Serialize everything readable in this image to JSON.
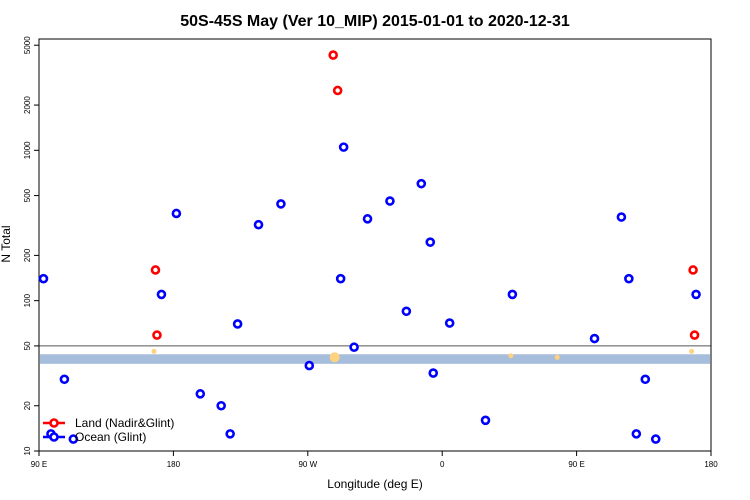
{
  "chart_data": {
    "type": "scatter",
    "title": "50S-45S May (Ver 10_MIP)   2015-01-01 to 2020-12-31",
    "xlabel": "Longitude (deg E)",
    "ylabel": "N Total",
    "x_ticks": [
      {
        "value": 90,
        "label": "90 E"
      },
      {
        "value": 180,
        "label": "180"
      },
      {
        "value": 270,
        "label": "90 W"
      },
      {
        "value": 360,
        "label": "0"
      },
      {
        "value": 450,
        "label": "90 E"
      },
      {
        "value": 540,
        "label": "180"
      }
    ],
    "y_ticks": [
      {
        "value": 10,
        "label": "10"
      },
      {
        "value": 20,
        "label": "20"
      },
      {
        "value": 50,
        "label": "50"
      },
      {
        "value": 100,
        "label": "100"
      },
      {
        "value": 200,
        "label": "200"
      },
      {
        "value": 500,
        "label": "500"
      },
      {
        "value": 1000,
        "label": "1000"
      },
      {
        "value": 2000,
        "label": "2000"
      },
      {
        "value": 5000,
        "label": "5000"
      }
    ],
    "xlim": [
      90,
      540
    ],
    "ylim": [
      10,
      5500
    ],
    "y_scale": "log",
    "threshold_line": 50,
    "band": {
      "ymin": 38,
      "ymax": 44,
      "color": "#a6bddb"
    },
    "series": [
      {
        "name": "Land (Nadir&Glint)",
        "color": "#ff0000",
        "points": [
          [
            168,
            160
          ],
          [
            169,
            59
          ],
          [
            287,
            4300
          ],
          [
            290,
            2500
          ],
          [
            528,
            160
          ],
          [
            529,
            59
          ]
        ]
      },
      {
        "name": "Ocean (Glint)",
        "color": "#0000ff",
        "points": [
          [
            93,
            140
          ],
          [
            98,
            13
          ],
          [
            107,
            30
          ],
          [
            113,
            12
          ],
          [
            172,
            110
          ],
          [
            182,
            380
          ],
          [
            198,
            24
          ],
          [
            212,
            20
          ],
          [
            218,
            13
          ],
          [
            223,
            70
          ],
          [
            237,
            320
          ],
          [
            252,
            440
          ],
          [
            271,
            37
          ],
          [
            292,
            140
          ],
          [
            294,
            1050
          ],
          [
            301,
            49
          ],
          [
            310,
            350
          ],
          [
            325,
            460
          ],
          [
            336,
            85
          ],
          [
            346,
            600
          ],
          [
            352,
            245
          ],
          [
            354,
            33
          ],
          [
            365,
            71
          ],
          [
            389,
            16
          ],
          [
            407,
            110
          ],
          [
            462,
            56
          ],
          [
            480,
            360
          ],
          [
            485,
            140
          ],
          [
            490,
            13
          ],
          [
            496,
            30
          ],
          [
            503,
            12
          ],
          [
            530,
            110
          ]
        ]
      }
    ],
    "small_markers": {
      "color": "#ffd27f",
      "points": [
        [
          167,
          46
        ],
        [
          288,
          42
        ],
        [
          406,
          43
        ],
        [
          437,
          42
        ],
        [
          527,
          46
        ]
      ]
    },
    "legend": {
      "position": "bottom-left"
    }
  }
}
